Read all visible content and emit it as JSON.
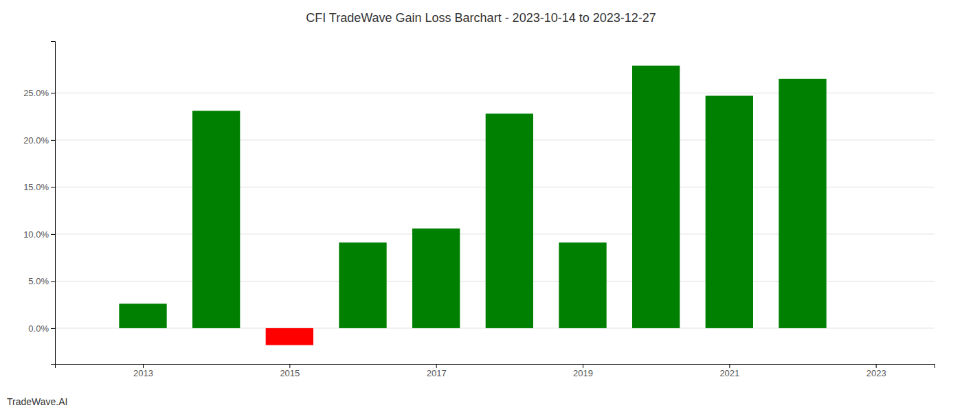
{
  "chart_data": {
    "type": "bar",
    "title": "CFI TradeWave Gain Loss Barchart - 2023-10-14 to 2023-12-27",
    "annotations": [
      "TradeWave.AI"
    ],
    "x": [
      2013,
      2014,
      2015,
      2016,
      2017,
      2018,
      2019,
      2020,
      2021,
      2022
    ],
    "values": [
      0.026,
      0.231,
      -0.018,
      0.091,
      0.106,
      0.228,
      0.091,
      0.279,
      0.247,
      0.265
    ],
    "colors": [
      "#008000",
      "#008000",
      "#ff0000",
      "#008000",
      "#008000",
      "#008000",
      "#008000",
      "#008000",
      "#008000",
      "#008000"
    ],
    "xlim": [
      2011.8,
      2023.8
    ],
    "xticks": [
      2013,
      2015,
      2017,
      2019,
      2021,
      2023
    ],
    "ylim": [
      -0.038,
      0.305
    ],
    "yticks": [
      {
        "value": 0.0,
        "label": "0.0%"
      },
      {
        "value": 0.05,
        "label": "5.0%"
      },
      {
        "value": 0.1,
        "label": "10.0%"
      },
      {
        "value": 0.15,
        "label": "15.0%"
      },
      {
        "value": 0.2,
        "label": "20.0%"
      },
      {
        "value": 0.25,
        "label": "25.0%"
      }
    ],
    "grid": true
  }
}
